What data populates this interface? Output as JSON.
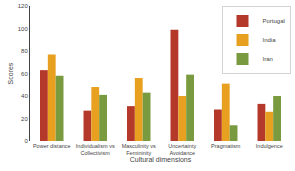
{
  "chart_data": {
    "type": "bar",
    "categories": [
      "Power distance",
      "Individualism vs\nCollectivism",
      "Masculinity vs\nFemininity",
      "Uncertainty\nAvoidance",
      "Pragmatism",
      "Indulgence"
    ],
    "series": [
      {
        "name": "Portugal",
        "color": "#b5392a",
        "values": [
          63,
          27,
          31,
          99,
          28,
          33
        ]
      },
      {
        "name": "India",
        "color": "#e8a020",
        "values": [
          77,
          48,
          56,
          40,
          51,
          26
        ]
      },
      {
        "name": "Iran",
        "color": "#7a9a40",
        "values": [
          58,
          41,
          43,
          59,
          14,
          40
        ]
      }
    ],
    "xlabel": "Cultural dimensions",
    "ylabel": "Scores",
    "ylim": [
      0,
      120
    ],
    "yticks": [
      0,
      20,
      40,
      60,
      80,
      100,
      120
    ],
    "legend": "upper right",
    "grid": false
  }
}
